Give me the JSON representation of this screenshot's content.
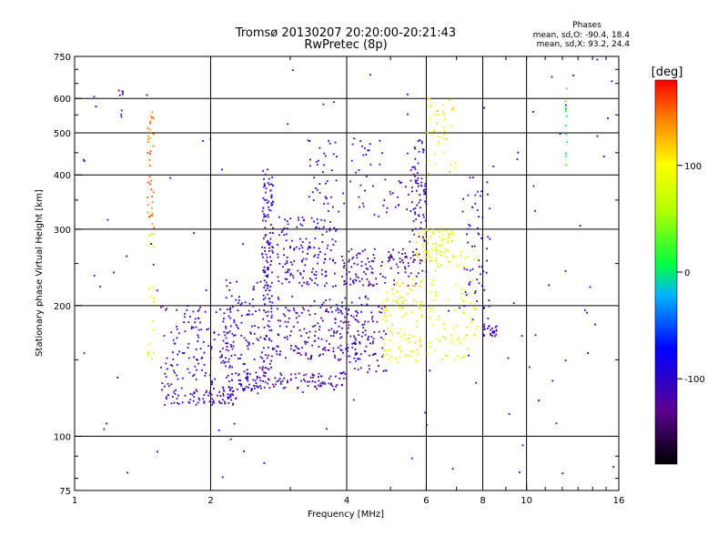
{
  "chart_data": {
    "type": "scatter",
    "title": "Tromsø 20130207 20:20:00-20:21:43",
    "subtitle": "RwPretec (8p)",
    "xlabel": "Frequency [MHz]",
    "ylabel": "Stationary phase Virtual Height [km]",
    "x_scale": "log",
    "y_scale": "log",
    "xlim": [
      1,
      16
    ],
    "ylim": [
      75,
      750
    ],
    "x_ticks": [
      1,
      2,
      4,
      6,
      8,
      10,
      16
    ],
    "x_tick_labels": [
      "1",
      "2",
      "4",
      "6",
      "8",
      "10",
      "16"
    ],
    "y_ticks": [
      75,
      100,
      200,
      300,
      400,
      500,
      600,
      750
    ],
    "y_tick_labels": [
      "75",
      "100",
      "200",
      "300",
      "400",
      "500",
      "600",
      "750"
    ],
    "x_gridlines": [
      2,
      4,
      6,
      8,
      10
    ],
    "y_gridlines": [
      100,
      200,
      300,
      400,
      500,
      600
    ],
    "grid": true,
    "stats": {
      "title": "Phases",
      "line_o": "mean, sd,O: -90.4, 18.4",
      "line_x": "mean, sd,X:  93.2, 24.4"
    },
    "colorbar": {
      "label": "[deg]",
      "range": [
        -180,
        180
      ],
      "ticks": [
        100,
        0,
        -100
      ],
      "tick_labels": [
        "100",
        "0",
        "-100"
      ]
    },
    "clusters": [
      {
        "from": [
          1.58,
          118
        ],
        "to": [
          2.3,
          128
        ],
        "phase": -115,
        "count": 70
      },
      {
        "from": [
          1.55,
          125
        ],
        "to": [
          2.25,
          200
        ],
        "phase": -108,
        "count": 150
      },
      {
        "from": [
          2.15,
          125
        ],
        "to": [
          2.6,
          230
        ],
        "phase": -105,
        "count": 120
      },
      {
        "from": [
          2.6,
          140
        ],
        "to": [
          2.75,
          420
        ],
        "phase": -108,
        "count": 160
      },
      {
        "from": [
          2.3,
          128
        ],
        "to": [
          4.0,
          140
        ],
        "phase": -120,
        "count": 110
      },
      {
        "from": [
          2.75,
          150
        ],
        "to": [
          4.6,
          210
        ],
        "phase": -115,
        "count": 190
      },
      {
        "from": [
          2.8,
          220
        ],
        "to": [
          3.8,
          320
        ],
        "phase": -110,
        "count": 150
      },
      {
        "from": [
          3.9,
          222
        ],
        "to": [
          5.9,
          270
        ],
        "phase": -125,
        "count": 130
      },
      {
        "from": [
          3.8,
          140
        ],
        "to": [
          4.9,
          200
        ],
        "phase": -112,
        "count": 80
      },
      {
        "from": [
          4.8,
          145
        ],
        "to": [
          5.9,
          230
        ],
        "phase": 95,
        "count": 110
      },
      {
        "from": [
          5.7,
          250
        ],
        "to": [
          6.9,
          300
        ],
        "phase": 95,
        "count": 80
      },
      {
        "from": [
          5.5,
          280
        ],
        "to": [
          6.0,
          480
        ],
        "phase": -110,
        "count": 70
      },
      {
        "from": [
          3.3,
          320
        ],
        "to": [
          5.5,
          480
        ],
        "phase": -112,
        "count": 80
      },
      {
        "from": [
          6.0,
          150
        ],
        "to": [
          7.8,
          270
        ],
        "phase": 85,
        "count": 90
      },
      {
        "from": [
          7.2,
          180
        ],
        "to": [
          8.3,
          400
        ],
        "phase": -105,
        "count": 60
      },
      {
        "from": [
          8.0,
          170
        ],
        "to": [
          8.6,
          180
        ],
        "phase": -110,
        "count": 25
      },
      {
        "from": [
          6.0,
          400
        ],
        "to": [
          7.0,
          600
        ],
        "phase": 105,
        "count": 40
      },
      {
        "from": [
          1.45,
          300
        ],
        "to": [
          1.5,
          560
        ],
        "phase": 150,
        "count": 40
      },
      {
        "from": [
          1.45,
          150
        ],
        "to": [
          1.5,
          300
        ],
        "phase": 80,
        "count": 18
      },
      {
        "from": [
          1.25,
          540
        ],
        "to": [
          1.28,
          640
        ],
        "phase": -120,
        "count": 8
      },
      {
        "from": [
          12.2,
          380
        ],
        "to": [
          12.3,
          700
        ],
        "phase": 0,
        "count": 12
      },
      {
        "from": [
          1.0,
          80
        ],
        "to": [
          16.0,
          740
        ],
        "phase": -90,
        "count": 120
      }
    ]
  }
}
